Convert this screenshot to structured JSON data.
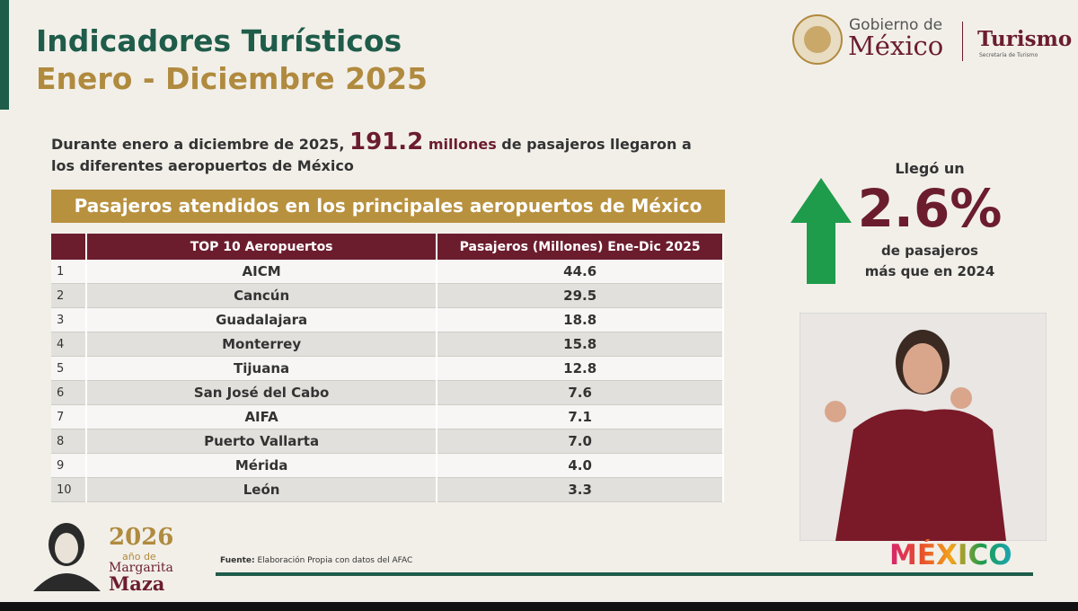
{
  "header": {
    "title": "Indicadores Turísticos",
    "subtitle": "Enero - Diciembre 2025"
  },
  "logo": {
    "gobierno": "Gobierno de",
    "mexico": "México",
    "turismo": "Turismo",
    "secretaria": "Secretaría de Turismo"
  },
  "intro": {
    "before": "Durante enero a diciembre de 2025,",
    "number": "191.2",
    "unit": "millones",
    "after": "de pasajeros llegaron a los diferentes aeropuertos de México"
  },
  "banner": "Pasajeros atendidos en los principales aeropuertos de México",
  "table": {
    "columns": [
      "TOP 10 Aeropuertos",
      "Pasajeros (Millones) Ene-Dic 2025"
    ],
    "rows": [
      [
        "1",
        "AICM",
        "44.6"
      ],
      [
        "2",
        "Cancún",
        "29.5"
      ],
      [
        "3",
        "Guadalajara",
        "18.8"
      ],
      [
        "4",
        "Monterrey",
        "15.8"
      ],
      [
        "5",
        "Tijuana",
        "12.8"
      ],
      [
        "6",
        "San José del Cabo",
        "7.6"
      ],
      [
        "7",
        "AIFA",
        "7.1"
      ],
      [
        "8",
        "Puerto Vallarta",
        "7.0"
      ],
      [
        "9",
        "Mérida",
        "4.0"
      ],
      [
        "10",
        "León",
        "3.3"
      ]
    ]
  },
  "highlight": {
    "lead": "Llegó un",
    "value": "2.6%",
    "line1": "de pasajeros",
    "line2": "más que en 2024"
  },
  "footer": {
    "source_label": "Fuente:",
    "source": "Elaboración Propia con datos del AFAC",
    "brand": "MÉXICO"
  },
  "badge": {
    "year": "2026",
    "of": "año de",
    "first": "Margarita",
    "last": "Maza"
  }
}
